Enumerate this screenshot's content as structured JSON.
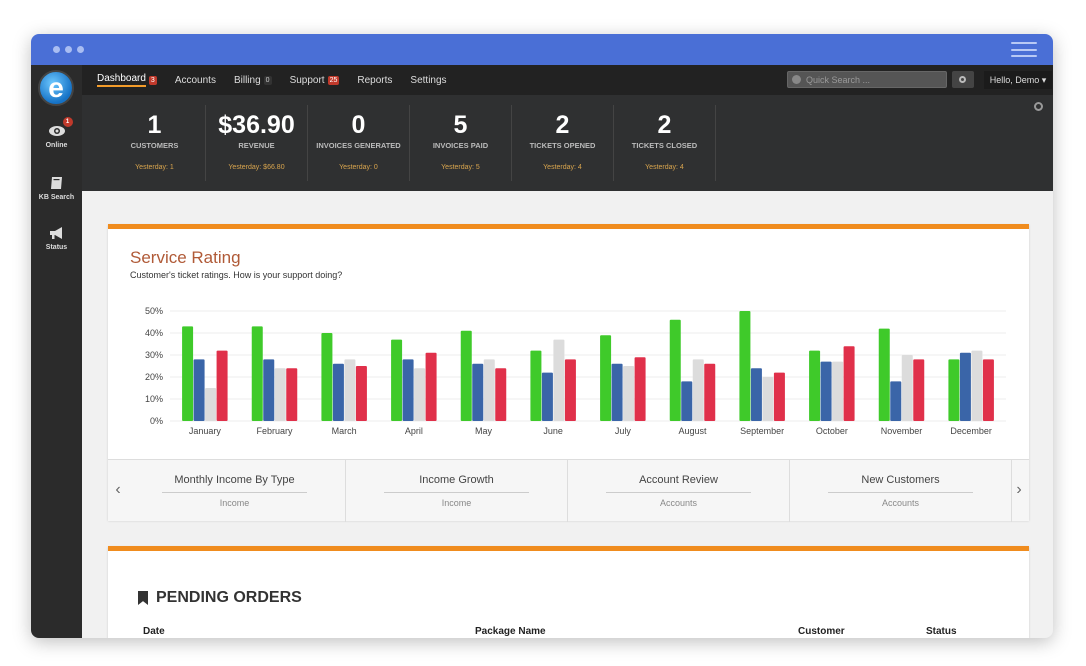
{
  "nav": {
    "items": [
      {
        "label": "Dashboard",
        "badge": "3",
        "active": true
      },
      {
        "label": "Accounts",
        "badge": ""
      },
      {
        "label": "Billing",
        "badge": "0"
      },
      {
        "label": "Support",
        "badge": "25"
      },
      {
        "label": "Reports",
        "badge": ""
      },
      {
        "label": "Settings",
        "badge": ""
      }
    ],
    "search_placeholder": "Quick Search ...",
    "user_label": "Hello, Demo"
  },
  "sidebar": {
    "logo": "e",
    "items": [
      {
        "label": "Online",
        "badge": "1"
      },
      {
        "label": "KB Search"
      },
      {
        "label": "Status"
      }
    ]
  },
  "stats": [
    {
      "value": "1",
      "label": "CUSTOMERS",
      "yesterday": "Yesterday: 1"
    },
    {
      "value": "$36.90",
      "label": "REVENUE",
      "yesterday": "Yesterday: $66.80"
    },
    {
      "value": "0",
      "label": "INVOICES GENERATED",
      "yesterday": "Yesterday: 0"
    },
    {
      "value": "5",
      "label": "INVOICES PAID",
      "yesterday": "Yesterday: 5"
    },
    {
      "value": "2",
      "label": "TICKETS OPENED",
      "yesterday": "Yesterday: 4"
    },
    {
      "value": "2",
      "label": "TICKETS CLOSED",
      "yesterday": "Yesterday: 4"
    }
  ],
  "service_rating": {
    "title": "Service Rating",
    "subtitle": "Customer's ticket ratings. How is your support doing?"
  },
  "chart_data": {
    "type": "bar",
    "categories": [
      "January",
      "February",
      "March",
      "April",
      "May",
      "June",
      "July",
      "August",
      "September",
      "October",
      "November",
      "December"
    ],
    "series": [
      {
        "color": "#3fca2a",
        "values": [
          43,
          43,
          40,
          37,
          41,
          32,
          39,
          46,
          50,
          32,
          42,
          28
        ]
      },
      {
        "color": "#3a65a8",
        "values": [
          28,
          28,
          26,
          28,
          26,
          22,
          26,
          18,
          24,
          27,
          18,
          31
        ]
      },
      {
        "color": "#dcdcdc",
        "values": [
          15,
          24,
          28,
          24,
          28,
          37,
          25,
          28,
          20,
          27,
          30,
          32
        ]
      },
      {
        "color": "#e0304a",
        "values": [
          32,
          24,
          25,
          31,
          24,
          28,
          29,
          26,
          22,
          34,
          28,
          28
        ]
      }
    ],
    "yticks": [
      "50%",
      "40%",
      "30%",
      "20%",
      "10%",
      "0%"
    ],
    "ylim": [
      0,
      50
    ]
  },
  "carousel": [
    {
      "title": "Monthly Income By Type",
      "sub": "Income"
    },
    {
      "title": "Income Growth",
      "sub": "Income"
    },
    {
      "title": "Account Review",
      "sub": "Accounts"
    },
    {
      "title": "New Customers",
      "sub": "Accounts"
    }
  ],
  "pending_orders": {
    "title": "PENDING ORDERS",
    "columns": [
      "Date",
      "Package Name",
      "Customer",
      "Status"
    ]
  }
}
